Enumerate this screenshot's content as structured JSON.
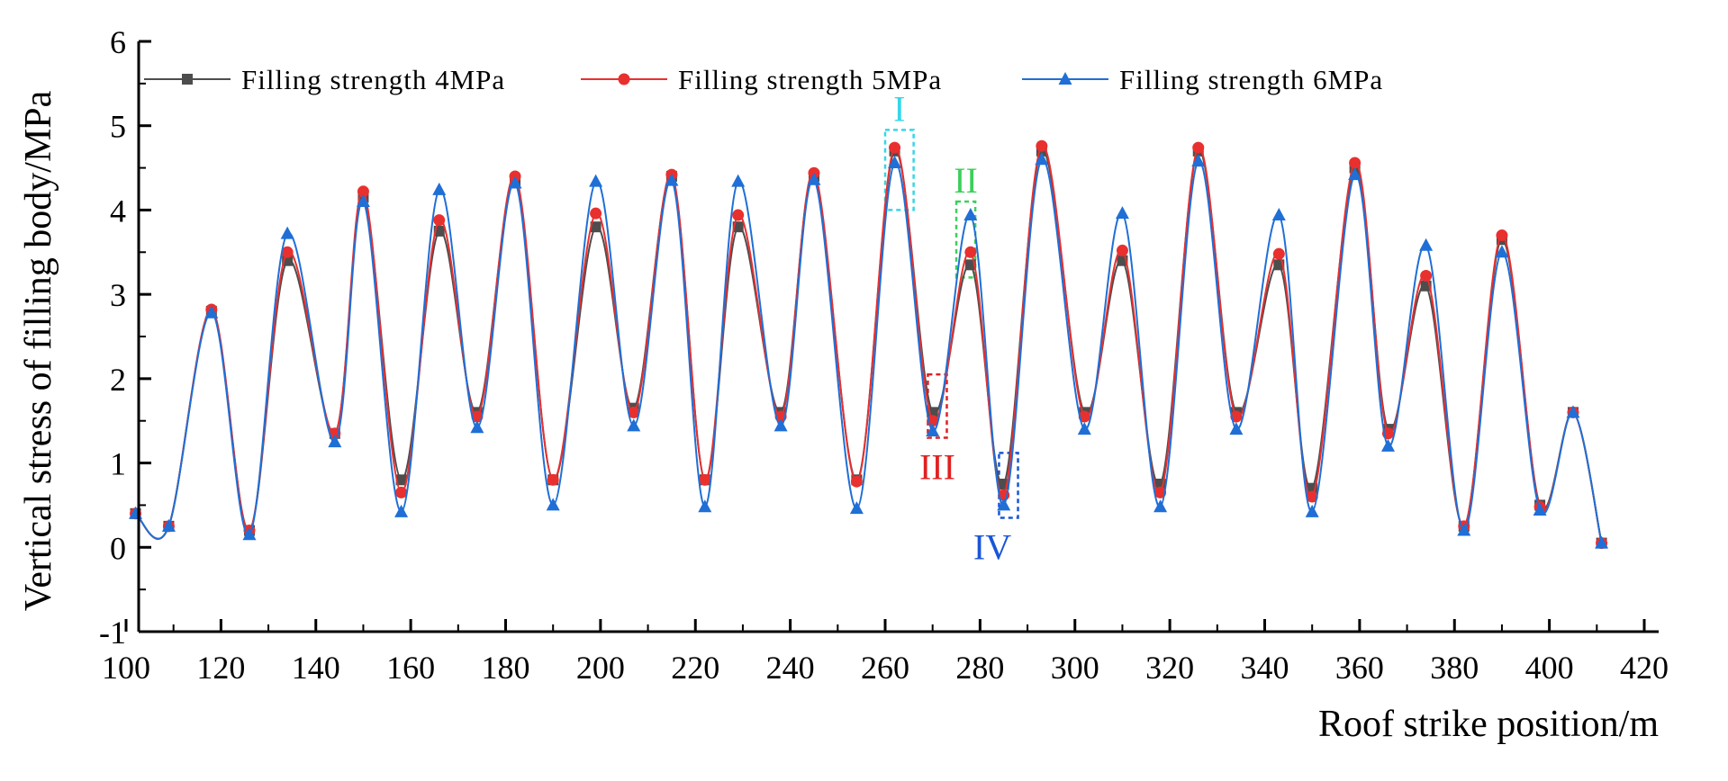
{
  "chart_data": {
    "type": "line",
    "title": "",
    "xlabel": "Roof strike position/m",
    "ylabel": "Vertical stress of filling body/MPa",
    "xlim": [
      100,
      420
    ],
    "ylim": [
      -1,
      6
    ],
    "xticks": [
      100,
      120,
      140,
      160,
      180,
      200,
      220,
      240,
      260,
      280,
      300,
      320,
      340,
      360,
      380,
      400,
      420
    ],
    "yticks": [
      -1,
      0,
      1,
      2,
      3,
      4,
      5,
      6
    ],
    "x": [
      102,
      109,
      118,
      126,
      134,
      144,
      150,
      158,
      166,
      174,
      182,
      190,
      199,
      207,
      215,
      222,
      229,
      238,
      245,
      254,
      262,
      270,
      278,
      285,
      293,
      302,
      310,
      318,
      326,
      334,
      343,
      350,
      359,
      366,
      374,
      382,
      390,
      398,
      405,
      411
    ],
    "series": [
      {
        "name": "Filling strength 4MPa",
        "color": "#4d4d4d",
        "marker": "square",
        "values": [
          0.4,
          0.25,
          2.8,
          0.2,
          3.4,
          1.35,
          4.15,
          0.8,
          3.75,
          1.6,
          4.35,
          0.8,
          3.8,
          1.65,
          4.4,
          0.8,
          3.8,
          1.6,
          4.4,
          0.8,
          4.7,
          1.6,
          3.35,
          0.75,
          4.7,
          1.6,
          3.4,
          0.75,
          4.7,
          1.6,
          3.35,
          0.7,
          4.5,
          1.4,
          3.1,
          0.25,
          3.65,
          0.5,
          1.6,
          0.05
        ]
      },
      {
        "name": "Filling strength 5MPa",
        "color": "#e8302f",
        "marker": "circle",
        "values": [
          0.4,
          0.25,
          2.82,
          0.2,
          3.5,
          1.35,
          4.22,
          0.65,
          3.88,
          1.55,
          4.4,
          0.8,
          3.96,
          1.6,
          4.42,
          0.8,
          3.94,
          1.55,
          4.44,
          0.78,
          4.74,
          1.5,
          3.5,
          0.62,
          4.76,
          1.55,
          3.52,
          0.65,
          4.74,
          1.55,
          3.48,
          0.6,
          4.56,
          1.35,
          3.22,
          0.25,
          3.7,
          0.48,
          1.6,
          0.05
        ]
      },
      {
        "name": "Filling strength 6MPa",
        "color": "#1f6fd6",
        "marker": "triangle",
        "values": [
          0.4,
          0.25,
          2.78,
          0.15,
          3.72,
          1.25,
          4.1,
          0.42,
          4.24,
          1.42,
          4.32,
          0.5,
          4.34,
          1.44,
          4.35,
          0.48,
          4.34,
          1.44,
          4.36,
          0.46,
          4.56,
          1.38,
          3.94,
          0.5,
          4.6,
          1.4,
          3.96,
          0.48,
          4.58,
          1.4,
          3.94,
          0.42,
          4.42,
          1.2,
          3.58,
          0.2,
          3.5,
          0.44,
          1.6,
          0.05
        ]
      }
    ],
    "annotations": [
      {
        "label": "I",
        "color": "#35d6e8",
        "x_range": [
          260,
          266
        ],
        "y_range": [
          4.0,
          4.95
        ]
      },
      {
        "label": "II",
        "color": "#3ccf5a",
        "x_range": [
          275,
          279
        ],
        "y_range": [
          3.2,
          4.1
        ]
      },
      {
        "label": "III",
        "color": "#e02020",
        "x_range": [
          269,
          273
        ],
        "y_range": [
          1.3,
          2.05
        ]
      },
      {
        "label": "IV",
        "color": "#1a55d8",
        "x_range": [
          284,
          288
        ],
        "y_range": [
          0.35,
          1.12
        ]
      }
    ],
    "legend_position": "top-left",
    "grid": false
  }
}
